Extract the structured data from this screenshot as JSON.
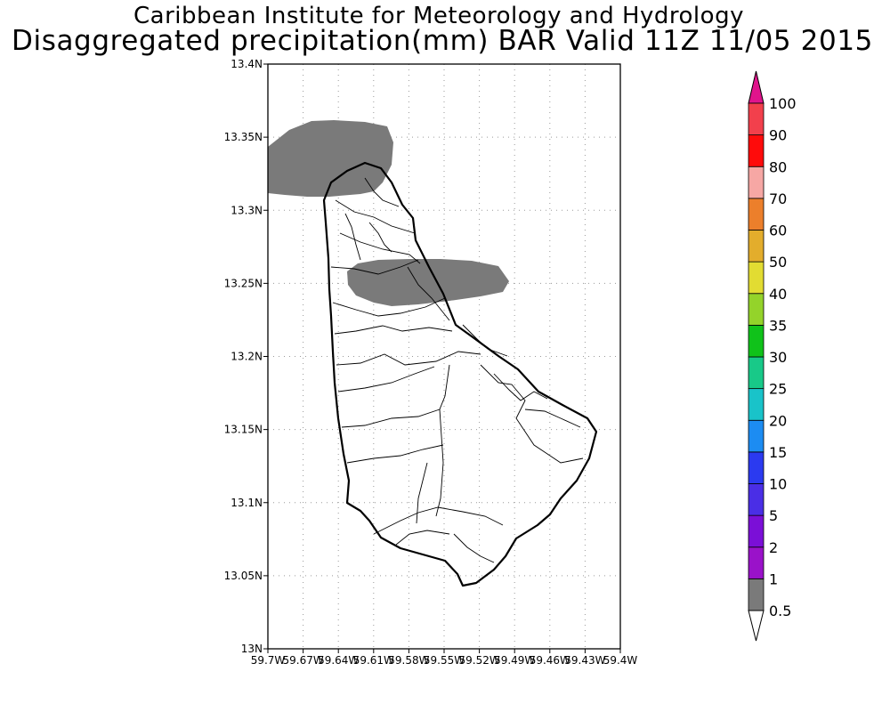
{
  "title": {
    "line1": "Caribbean Institute for Meteorology and Hydrology",
    "line2": "Disaggregated precipitation(mm) BAR Valid 11Z 11/05 2015"
  },
  "map": {
    "lat_ticks": [
      "13.4N",
      "13.35N",
      "13.3N",
      "13.25N",
      "13.2N",
      "13.15N",
      "13.1N",
      "13.05N",
      "13N"
    ],
    "lon_ticks": [
      "59.7W",
      "59.67W",
      "59.64W",
      "59.61W",
      "59.58W",
      "59.55W",
      "59.52W",
      "59.49W",
      "59.46W",
      "59.43W",
      "59.4W"
    ],
    "gridlines": true,
    "precip_fill_color": "#7a7a7a",
    "precip_areas": [
      {
        "class": "0.5-1 mm",
        "region": "northwest coast off north tip"
      },
      {
        "class": "0.5-1 mm",
        "region": "central band near 13.25N"
      }
    ]
  },
  "colorbar": {
    "labels": [
      "0.5",
      "1",
      "2",
      "5",
      "10",
      "15",
      "20",
      "25",
      "30",
      "35",
      "40",
      "50",
      "60",
      "70",
      "80",
      "90",
      "100"
    ],
    "colors": [
      "#7a7a7a",
      "#9a12c9",
      "#7b0fd7",
      "#4a2ee6",
      "#2b3af0",
      "#1c8cf2",
      "#19c3c9",
      "#18c988",
      "#10c21a",
      "#94d32a",
      "#e2dc32",
      "#e3ad2c",
      "#ec7f2b",
      "#f6a7a4",
      "#fe0b0b",
      "#f2404c"
    ],
    "top_arrow_color": "#e0148c",
    "bottom_arrow_color": "#ffffff"
  }
}
